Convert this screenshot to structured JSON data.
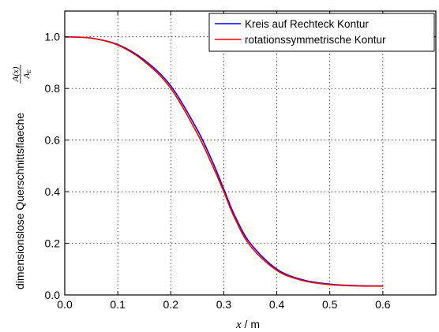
{
  "chart_data": {
    "type": "line",
    "title": "",
    "xlabel": {
      "var": "x",
      "unit": " / m"
    },
    "ylabel": {
      "text": "dimensionslose Querschnittsflaeche",
      "frac_num": "A(x)",
      "frac_den_main": "A",
      "frac_den_sub": "E"
    },
    "xlim": [
      0.0,
      0.7
    ],
    "ylim": [
      0.0,
      1.1
    ],
    "xticks": [
      "0.0",
      "0.1",
      "0.2",
      "0.3",
      "0.4",
      "0.5",
      "0.6"
    ],
    "xtick_values": [
      0.0,
      0.1,
      0.2,
      0.3,
      0.4,
      0.5,
      0.6
    ],
    "yticks": [
      "0.0",
      "0.2",
      "0.4",
      "0.6",
      "0.8",
      "1.0"
    ],
    "ytick_values": [
      0.0,
      0.2,
      0.4,
      0.6,
      0.8,
      1.0
    ],
    "grid": true,
    "legend_position": "top-right",
    "x": [
      0.0,
      0.05,
      0.1,
      0.15,
      0.2,
      0.25,
      0.28,
      0.3,
      0.32,
      0.35,
      0.4,
      0.45,
      0.5,
      0.55,
      0.6
    ],
    "series": [
      {
        "name": "Kreis auf Rechteck Kontur",
        "color": "#0000ff",
        "values": [
          1.0,
          0.995,
          0.97,
          0.91,
          0.81,
          0.64,
          0.51,
          0.41,
          0.31,
          0.2,
          0.1,
          0.058,
          0.042,
          0.036,
          0.035
        ]
      },
      {
        "name": "rotationssymmetrische Kontur",
        "color": "#ff0000",
        "values": [
          1.0,
          0.995,
          0.968,
          0.905,
          0.8,
          0.625,
          0.495,
          0.4,
          0.3,
          0.19,
          0.095,
          0.055,
          0.04,
          0.035,
          0.034
        ]
      }
    ]
  }
}
